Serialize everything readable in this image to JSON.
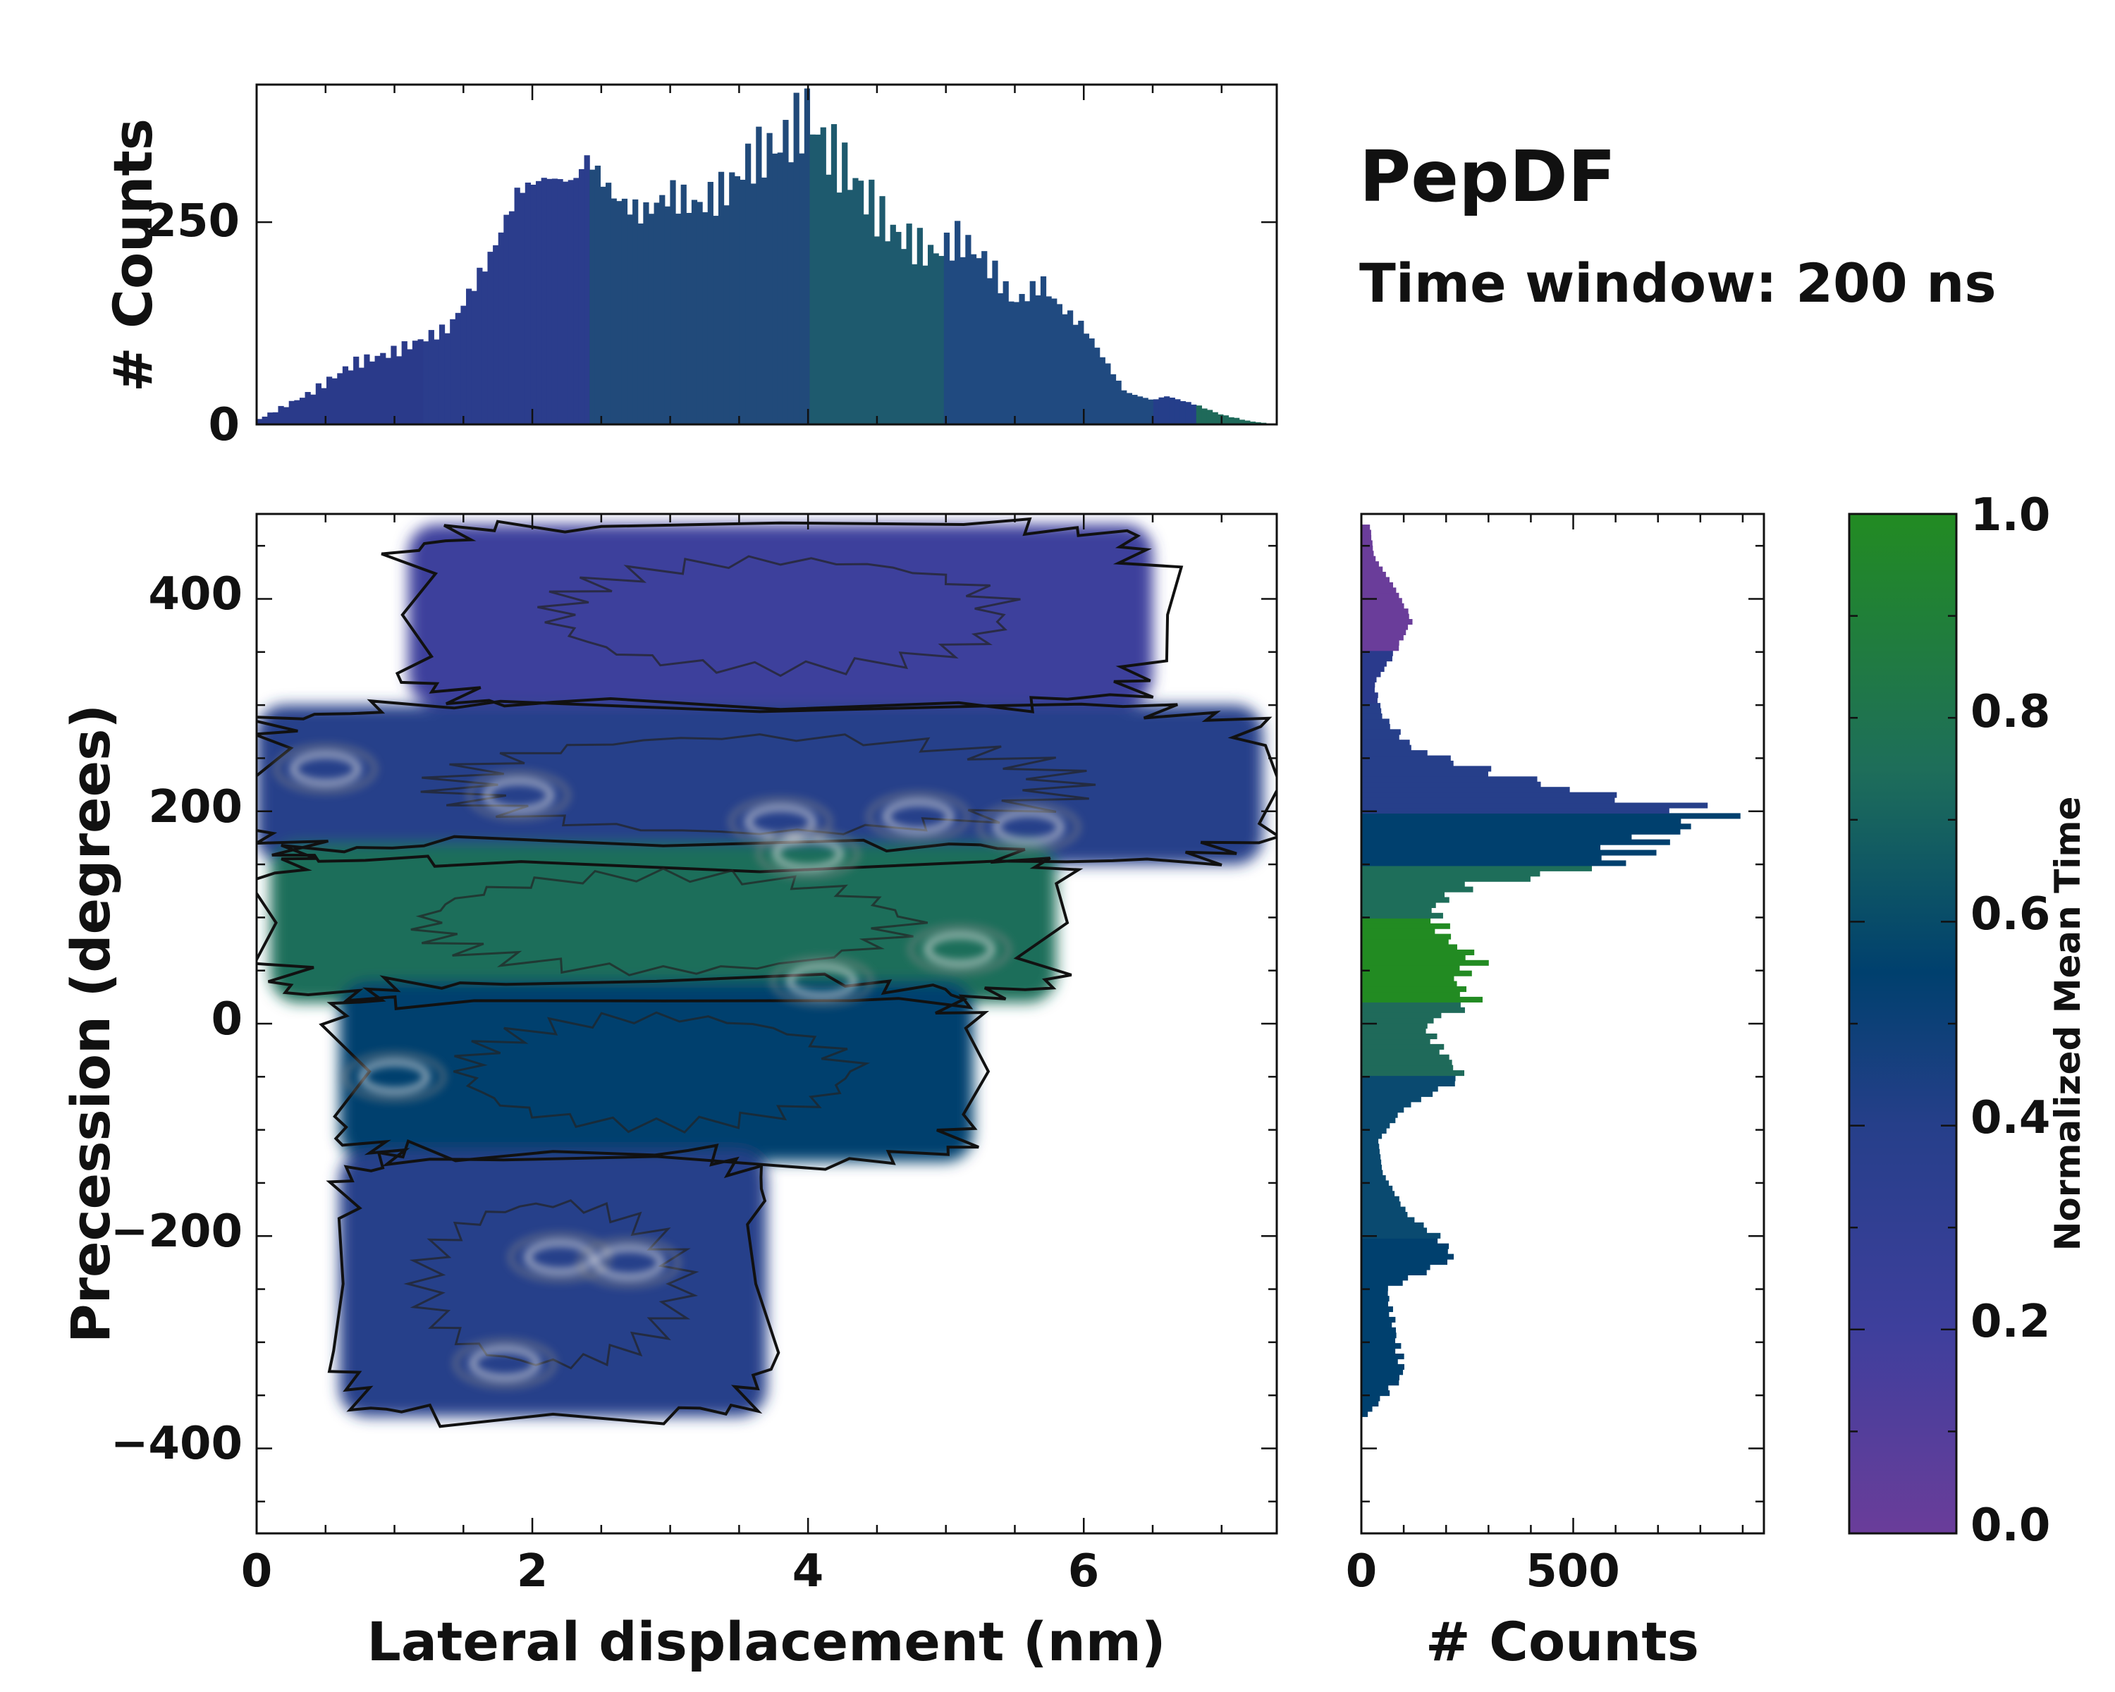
{
  "chart_data": [
    {
      "id": "top_histogram",
      "type": "bar",
      "orientation": "vertical",
      "ylabel": "# Counts",
      "xlim": [
        0,
        7.4
      ],
      "ylim": [
        0,
        420
      ],
      "yticks": [
        0,
        250
      ],
      "profile_x": [
        0,
        0.4,
        0.7,
        1.0,
        1.4,
        1.7,
        1.9,
        2.1,
        2.3,
        2.4,
        2.6,
        2.8,
        3.0,
        3.2,
        3.4,
        3.6,
        3.8,
        4.0,
        4.1,
        4.3,
        4.6,
        4.9,
        5.1,
        5.3,
        5.5,
        5.7,
        5.8,
        6.0,
        6.3,
        6.5,
        6.6,
        6.8,
        7.0,
        7.2,
        7.4
      ],
      "profile_y": [
        5,
        40,
        75,
        90,
        120,
        210,
        290,
        305,
        300,
        330,
        280,
        260,
        285,
        270,
        290,
        330,
        345,
        385,
        350,
        310,
        240,
        210,
        230,
        200,
        150,
        175,
        150,
        120,
        40,
        30,
        35,
        25,
        12,
        4,
        0
      ],
      "colors_by_x": [
        [
          "#2a3a8a",
          0.0
        ],
        [
          "#2b3d8c",
          1.2
        ],
        [
          "#214a7a",
          2.4
        ],
        [
          "#1e5a6e",
          4.0
        ],
        [
          "#204a80",
          5.0
        ],
        [
          "#253e8a",
          6.5
        ],
        [
          "#1f6a5a",
          6.8
        ],
        [
          "#253e8a",
          7.4
        ]
      ]
    },
    {
      "id": "main_heatmap",
      "type": "heatmap",
      "xlabel": "Lateral displacement (nm)",
      "ylabel": "Precession (degrees)",
      "xlim": [
        0,
        7.4
      ],
      "ylim": [
        -480,
        480
      ],
      "xticks": [
        0,
        2,
        4,
        6
      ],
      "yticks": [
        -400,
        -200,
        0,
        200,
        400
      ],
      "colorbar": {
        "label": "Normalized Mean Time",
        "range": [
          0.0,
          1.0
        ],
        "ticks": [
          "0.0",
          "0.2",
          "0.4",
          "0.6",
          "0.8",
          "1.0"
        ],
        "colormap": [
          "#6a3d9a",
          "#3e3f9c",
          "#263f8a",
          "#00406e",
          "#1e6e5a",
          "#228b22"
        ]
      },
      "regions": [
        {
          "name": "upper-violet",
          "x": [
            1.1,
            6.5
          ],
          "y": [
            300,
            470
          ],
          "value": 0.1
        },
        {
          "name": "upper-band",
          "x": [
            0.0,
            7.3
          ],
          "y": [
            150,
            300
          ],
          "value": 0.35
        },
        {
          "name": "middle-band",
          "x": [
            0.1,
            5.8
          ],
          "y": [
            20,
            170
          ],
          "value": 0.75
        },
        {
          "name": "lower-middle",
          "x": [
            0.6,
            5.2
          ],
          "y": [
            -130,
            40
          ],
          "value": 0.6
        },
        {
          "name": "lower-band",
          "x": [
            0.6,
            3.7
          ],
          "y": [
            -370,
            -120
          ],
          "value": 0.45
        }
      ],
      "hotspots": [
        {
          "x": 3.8,
          "y": 190
        },
        {
          "x": 4.0,
          "y": 160
        },
        {
          "x": 4.8,
          "y": 195
        },
        {
          "x": 5.6,
          "y": 185
        },
        {
          "x": 1.9,
          "y": 215
        },
        {
          "x": 0.5,
          "y": 240
        },
        {
          "x": 4.1,
          "y": 40
        },
        {
          "x": 5.1,
          "y": 70
        },
        {
          "x": 2.2,
          "y": -220
        },
        {
          "x": 2.7,
          "y": -225
        },
        {
          "x": 1.8,
          "y": -320
        },
        {
          "x": 1.0,
          "y": -50
        }
      ]
    },
    {
      "id": "right_histogram",
      "type": "bar",
      "orientation": "horizontal",
      "xlabel": "# Counts",
      "xlim": [
        0,
        950
      ],
      "xticks": [
        0,
        500
      ],
      "ylim": [
        -480,
        480
      ],
      "profile_y": [
        -370,
        -330,
        -290,
        -250,
        -220,
        -200,
        -180,
        -140,
        -110,
        -80,
        -50,
        -20,
        0,
        20,
        40,
        60,
        80,
        110,
        130,
        150,
        170,
        180,
        190,
        200,
        220,
        240,
        260,
        290,
        320,
        350,
        380,
        410,
        440,
        470
      ],
      "profile_x": [
        10,
        100,
        80,
        60,
        220,
        180,
        110,
        50,
        40,
        100,
        240,
        180,
        150,
        270,
        220,
        280,
        200,
        170,
        250,
        600,
        650,
        720,
        800,
        830,
        500,
        280,
        120,
        50,
        30,
        80,
        120,
        80,
        30,
        20
      ],
      "colors_by_y": [
        [
          "#00406e",
          -480
        ],
        [
          "#0a4a70",
          -200
        ],
        [
          "#1f6a5a",
          -50
        ],
        [
          "#228b22",
          20
        ],
        [
          "#1e6e5a",
          100
        ],
        [
          "#00406e",
          150
        ],
        [
          "#263f8a",
          200
        ],
        [
          "#2a3a8c",
          300
        ],
        [
          "#6a3d9a",
          350
        ],
        [
          "#6a3d9a",
          480
        ]
      ]
    }
  ],
  "labels": {
    "title": "PepDF",
    "subtitle": "Time window: 200 ns",
    "top_ylabel": "# Counts",
    "main_xlabel": "Lateral displacement (nm)",
    "main_ylabel": "Precession (degrees)",
    "right_xlabel": "# Counts",
    "cbar_label": "Normalized Mean Time",
    "top_ytick_0": "0",
    "top_ytick_250": "250",
    "main_xtick_0": "0",
    "main_xtick_2": "2",
    "main_xtick_4": "4",
    "main_xtick_6": "6",
    "main_ytick_m400": "−400",
    "main_ytick_m200": "−200",
    "main_ytick_0": "0",
    "main_ytick_200": "200",
    "main_ytick_400": "400",
    "right_xtick_0": "0",
    "right_xtick_500": "500",
    "cbar_tick_0": "0.0",
    "cbar_tick_1": "0.2",
    "cbar_tick_2": "0.4",
    "cbar_tick_3": "0.6",
    "cbar_tick_4": "0.8",
    "cbar_tick_5": "1.0"
  }
}
